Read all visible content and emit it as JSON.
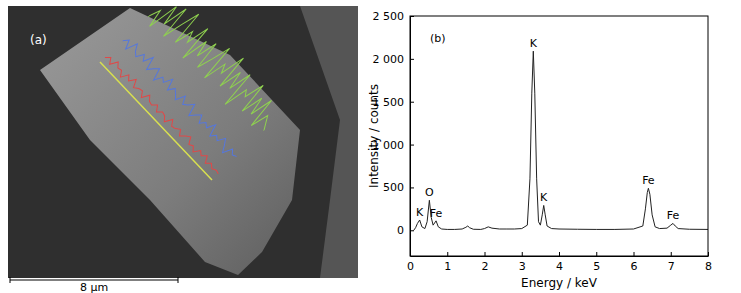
{
  "chart_data": [
    {
      "type": "line_scan",
      "annotations": [
        {
          "text": "(a)"
        },
        {
          "text": "8 μm"
        }
      ],
      "ylim": [
        0,
        100
      ],
      "tick_labels": false,
      "series": [
        {
          "color": "#e04848",
          "values": [
            6,
            10,
            5,
            12,
            8,
            9,
            4,
            11,
            7,
            13,
            6,
            9,
            10,
            5,
            12,
            8,
            7,
            11,
            6,
            10,
            9,
            5,
            12,
            7,
            8,
            11,
            6,
            10,
            13,
            7,
            9,
            5,
            11,
            8,
            12,
            6,
            10,
            7,
            9,
            8
          ]
        },
        {
          "color": "#5577dd",
          "values": [
            28,
            33,
            25,
            36,
            30,
            27,
            34,
            29,
            38,
            26,
            31,
            35,
            24,
            32,
            29,
            37,
            27,
            33,
            30,
            26,
            35,
            28,
            31,
            36,
            25,
            30,
            34,
            27,
            32,
            29,
            37,
            26,
            31,
            28,
            35,
            30,
            24,
            33,
            29,
            31
          ]
        },
        {
          "color": "#8fd14f",
          "values": [
            60,
            72,
            55,
            85,
            66,
            90,
            58,
            78,
            95,
            62,
            80,
            70,
            92,
            57,
            83,
            68,
            88,
            61,
            76,
            94,
            59,
            81,
            73,
            97,
            64,
            86,
            69,
            91,
            56,
            79,
            74,
            93,
            63,
            84,
            67,
            89,
            60,
            77,
            71,
            65
          ]
        }
      ]
    },
    {
      "type": "line",
      "xlabel": "Energy / keV",
      "ylabel": "Intensity / counts",
      "xlim": [
        0,
        8
      ],
      "ylim": [
        -300,
        2500
      ],
      "xticks": [
        0,
        1,
        2,
        3,
        4,
        5,
        6,
        7,
        8
      ],
      "yticks": [
        0,
        500,
        {
          "value": 1000,
          "label": "1 000"
        },
        {
          "value": 1500,
          "label": "1 500"
        },
        {
          "value": 2000,
          "label": "2 000"
        },
        {
          "value": 2500,
          "label": "2 500"
        }
      ],
      "annotations": [
        {
          "text": "(b)"
        },
        {
          "text": "K",
          "x": 0.26,
          "y": 120
        },
        {
          "text": "O",
          "x": 0.52,
          "y": 350
        },
        {
          "text": "Fe",
          "x": 0.7,
          "y": 110
        },
        {
          "text": "K",
          "x": 3.31,
          "y": 2090
        },
        {
          "text": "K",
          "x": 3.59,
          "y": 290
        },
        {
          "text": "Fe",
          "x": 6.4,
          "y": 490
        },
        {
          "text": "Fe",
          "x": 7.06,
          "y": 80
        }
      ],
      "x": [
        0.1,
        0.15,
        0.2,
        0.26,
        0.32,
        0.4,
        0.46,
        0.52,
        0.57,
        0.62,
        0.7,
        0.76,
        0.85,
        1.0,
        1.2,
        1.4,
        1.5,
        1.55,
        1.6,
        1.7,
        1.9,
        2.0,
        2.1,
        2.2,
        2.4,
        2.6,
        2.8,
        3.0,
        3.15,
        3.22,
        3.27,
        3.31,
        3.35,
        3.4,
        3.45,
        3.5,
        3.55,
        3.59,
        3.63,
        3.68,
        3.8,
        4.0,
        4.5,
        5.0,
        5.5,
        6.0,
        6.25,
        6.32,
        6.37,
        6.4,
        6.44,
        6.5,
        6.58,
        6.7,
        6.9,
        7.0,
        7.06,
        7.12,
        7.2,
        7.5,
        8.0
      ],
      "series": [
        {
          "color": "#222222",
          "values": [
            0,
            30,
            80,
            120,
            40,
            20,
            100,
            350,
            150,
            60,
            110,
            40,
            15,
            10,
            10,
            15,
            35,
            50,
            30,
            12,
            10,
            20,
            40,
            25,
            15,
            15,
            15,
            20,
            60,
            600,
            1600,
            2090,
            1600,
            600,
            100,
            60,
            180,
            290,
            180,
            50,
            20,
            15,
            12,
            10,
            10,
            15,
            50,
            250,
            440,
            490,
            420,
            180,
            40,
            20,
            25,
            60,
            80,
            50,
            20,
            12,
            10
          ]
        }
      ]
    }
  ]
}
